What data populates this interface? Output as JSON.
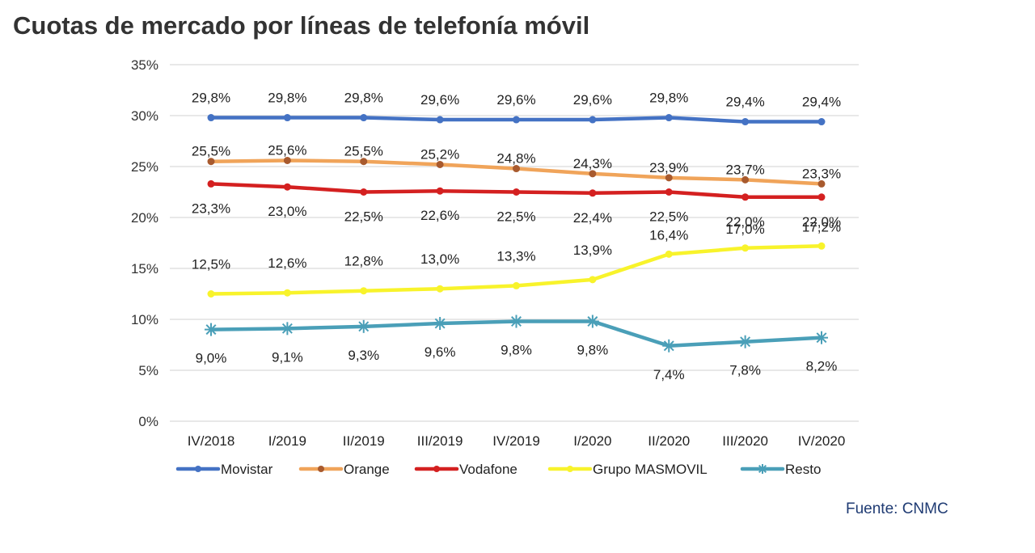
{
  "title": "Cuotas de mercado por líneas de telefonía móvil",
  "source": "Fuente: CNMC",
  "chart_data": {
    "type": "line",
    "title": "",
    "xlabel": "",
    "ylabel": "",
    "ylim": [
      0,
      35
    ],
    "y_ticks": [
      "0%",
      "5%",
      "10%",
      "15%",
      "20%",
      "25%",
      "30%",
      "35%"
    ],
    "grid": true,
    "legend_position": "bottom",
    "categories": [
      "IV/2018",
      "I/2019",
      "II/2019",
      "III/2019",
      "IV/2019",
      "I/2020",
      "II/2020",
      "III/2020",
      "IV/2020"
    ],
    "series": [
      {
        "name": "Movistar",
        "color": "#4472c4",
        "marker": "dot",
        "values": [
          29.8,
          29.8,
          29.8,
          29.6,
          29.6,
          29.6,
          29.8,
          29.4,
          29.4
        ],
        "labels": [
          "29,8%",
          "29,8%",
          "29,8%",
          "29,6%",
          "29,6%",
          "29,6%",
          "29,8%",
          "29,4%",
          "29,4%"
        ]
      },
      {
        "name": "Orange",
        "color": "#f0a45a",
        "marker": "dot",
        "marker_color": "#a85a2e",
        "values": [
          25.5,
          25.6,
          25.5,
          25.2,
          24.8,
          24.3,
          23.9,
          23.7,
          23.3
        ],
        "labels": [
          "25,5%",
          "25,6%",
          "25,5%",
          "25,2%",
          "24,8%",
          "24,3%",
          "23,9%",
          "23,7%",
          "23,3%"
        ]
      },
      {
        "name": "Vodafone",
        "color": "#d42020",
        "marker": "dot",
        "values": [
          23.3,
          23.0,
          22.5,
          22.6,
          22.5,
          22.4,
          22.5,
          22.0,
          22.0
        ],
        "labels": [
          "23,3%",
          "23,0%",
          "22,5%",
          "22,6%",
          "22,5%",
          "22,4%",
          "22,5%",
          "22,0%",
          "22,0%"
        ]
      },
      {
        "name": "Grupo MASMOVIL",
        "color": "#f8f32b",
        "marker": "dot",
        "values": [
          12.5,
          12.6,
          12.8,
          13.0,
          13.3,
          13.9,
          16.4,
          17.0,
          17.2
        ],
        "labels": [
          "12,5%",
          "12,6%",
          "12,8%",
          "13,0%",
          "13,3%",
          "13,9%",
          "16,4%",
          "17,0%",
          "17,2%"
        ]
      },
      {
        "name": "Resto",
        "color": "#4a9fb8",
        "marker": "star",
        "values": [
          9.0,
          9.1,
          9.3,
          9.6,
          9.8,
          9.8,
          7.4,
          7.8,
          8.2
        ],
        "labels": [
          "9,0%",
          "9,1%",
          "9,3%",
          "9,6%",
          "9,8%",
          "9,8%",
          "7,4%",
          "7,8%",
          "8,2%"
        ]
      }
    ]
  }
}
